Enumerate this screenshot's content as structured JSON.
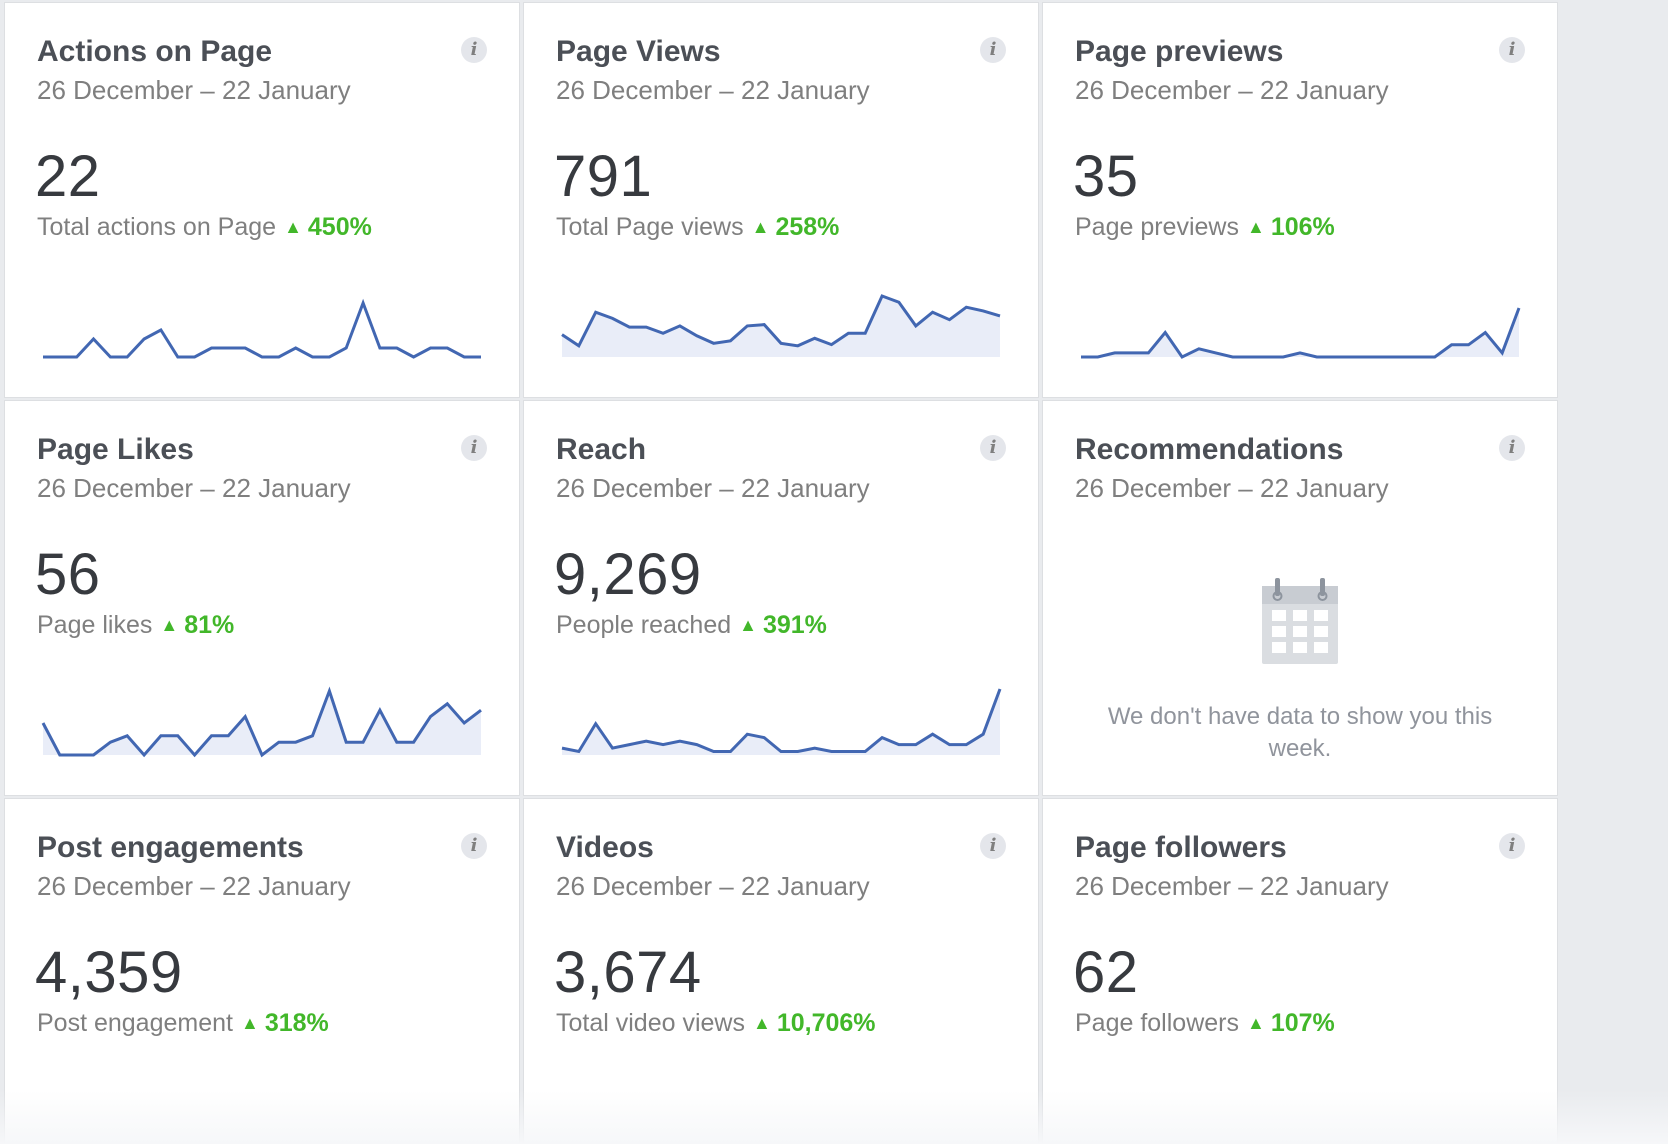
{
  "colors": {
    "line": "#4267b2",
    "fill": "#e9edf8",
    "positive": "#42b72a"
  },
  "cards": [
    {
      "title": "Actions on Page",
      "date_range": "26 December – 22 January",
      "value": "22",
      "sub_label": "Total actions on Page",
      "delta": "450%",
      "trend_icon": "triangle-up-icon",
      "chart_data": {
        "type": "line",
        "values": [
          0,
          0,
          0,
          2,
          0,
          0,
          2,
          3,
          0,
          0,
          1,
          1,
          1,
          0,
          0,
          1,
          0,
          0,
          1,
          6,
          1,
          1,
          0,
          1,
          1,
          0,
          0
        ]
      }
    },
    {
      "title": "Page Views",
      "date_range": "26 December – 22 January",
      "value": "791",
      "sub_label": "Total Page views",
      "delta": "258%",
      "trend_icon": "triangle-up-icon",
      "chart_data": {
        "type": "area",
        "values": [
          18,
          9,
          36,
          31,
          24,
          24,
          19,
          25,
          17,
          11,
          13,
          25,
          26,
          11,
          9,
          15,
          10,
          19,
          19,
          49,
          44,
          25,
          36,
          30,
          40,
          37,
          33
        ]
      }
    },
    {
      "title": "Page previews",
      "date_range": "26 December – 22 January",
      "value": "35",
      "sub_label": "Page previews",
      "delta": "106%",
      "trend_icon": "triangle-up-icon",
      "chart_data": {
        "type": "area",
        "values": [
          0,
          0,
          1,
          1,
          1,
          6,
          0,
          2,
          1,
          0,
          0,
          0,
          0,
          1,
          0,
          0,
          0,
          0,
          0,
          0,
          0,
          0,
          3,
          3,
          6,
          1,
          12
        ]
      }
    },
    {
      "title": "Page Likes",
      "date_range": "26 December – 22 January",
      "value": "56",
      "sub_label": "Page likes",
      "delta": "81%",
      "trend_icon": "triangle-up-icon",
      "chart_data": {
        "type": "area",
        "values": [
          5,
          0,
          0,
          0,
          2,
          3,
          0,
          3,
          3,
          0,
          3,
          3,
          6,
          0,
          2,
          2,
          3,
          10,
          2,
          2,
          7,
          2,
          2,
          6,
          8,
          5,
          7
        ]
      }
    },
    {
      "title": "Reach",
      "date_range": "26 December – 22 January",
      "value": "9,269",
      "sub_label": "People reached",
      "delta": "391%",
      "trend_icon": "triangle-up-icon",
      "chart_data": {
        "type": "area",
        "values": [
          2,
          1,
          9,
          2,
          3,
          4,
          3,
          4,
          3,
          1,
          1,
          6,
          5,
          1,
          1,
          2,
          1,
          1,
          1,
          5,
          3,
          3,
          6,
          3,
          3,
          6,
          19
        ]
      }
    },
    {
      "title": "Recommendations",
      "date_range": "26 December – 22 January",
      "empty_icon": "calendar-icon",
      "empty_message": "We don't have data to show you this week."
    },
    {
      "title": "Post engagements",
      "date_range": "26 December – 22 January",
      "value": "4,359",
      "sub_label": "Post engagement",
      "delta": "318%",
      "trend_icon": "triangle-up-icon"
    },
    {
      "title": "Videos",
      "date_range": "26 December – 22 January",
      "value": "3,674",
      "sub_label": "Total video views",
      "delta": "10,706%",
      "trend_icon": "triangle-up-icon"
    },
    {
      "title": "Page followers",
      "date_range": "26 December – 22 January",
      "value": "62",
      "sub_label": "Page followers",
      "delta": "107%",
      "trend_icon": "triangle-up-icon"
    }
  ]
}
